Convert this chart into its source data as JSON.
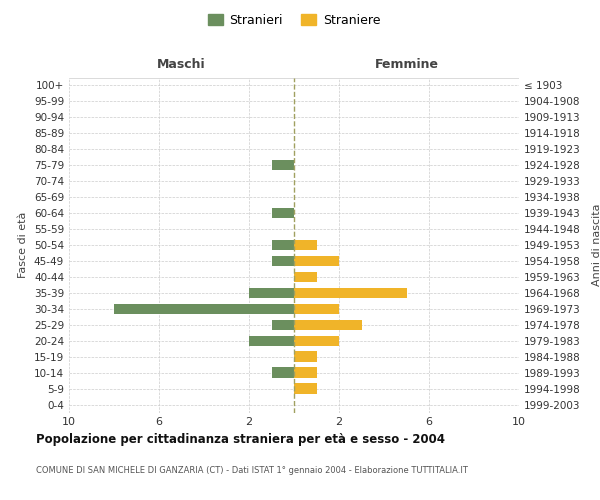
{
  "age_groups": [
    "100+",
    "95-99",
    "90-94",
    "85-89",
    "80-84",
    "75-79",
    "70-74",
    "65-69",
    "60-64",
    "55-59",
    "50-54",
    "45-49",
    "40-44",
    "35-39",
    "30-34",
    "25-29",
    "20-24",
    "15-19",
    "10-14",
    "5-9",
    "0-4"
  ],
  "birth_years": [
    "≤ 1903",
    "1904-1908",
    "1909-1913",
    "1914-1918",
    "1919-1923",
    "1924-1928",
    "1929-1933",
    "1934-1938",
    "1939-1943",
    "1944-1948",
    "1949-1953",
    "1954-1958",
    "1959-1963",
    "1964-1968",
    "1969-1973",
    "1974-1978",
    "1979-1983",
    "1984-1988",
    "1989-1993",
    "1994-1998",
    "1999-2003"
  ],
  "males_stranieri": [
    0,
    0,
    0,
    0,
    0,
    1,
    0,
    0,
    1,
    0,
    1,
    1,
    0,
    2,
    8,
    1,
    2,
    0,
    1,
    0,
    0
  ],
  "females_straniere": [
    0,
    0,
    0,
    0,
    0,
    0,
    0,
    0,
    0,
    0,
    1,
    2,
    1,
    5,
    2,
    3,
    2,
    1,
    1,
    1,
    0
  ],
  "color_males": "#6b8f5e",
  "color_females": "#f0b429",
  "xlim": 10,
  "title": "Popolazione per cittadinanza straniera per età e sesso - 2004",
  "subtitle": "COMUNE DI SAN MICHELE DI GANZARIA (CT) - Dati ISTAT 1° gennaio 2004 - Elaborazione TUTTITALIA.IT",
  "ylabel_left": "Fasce di età",
  "ylabel_right": "Anni di nascita",
  "header_left": "Maschi",
  "header_right": "Femmine",
  "legend_males": "Stranieri",
  "legend_females": "Straniere",
  "bg_color": "#ffffff",
  "grid_color": "#cccccc",
  "center_line_color": "#a0a060"
}
